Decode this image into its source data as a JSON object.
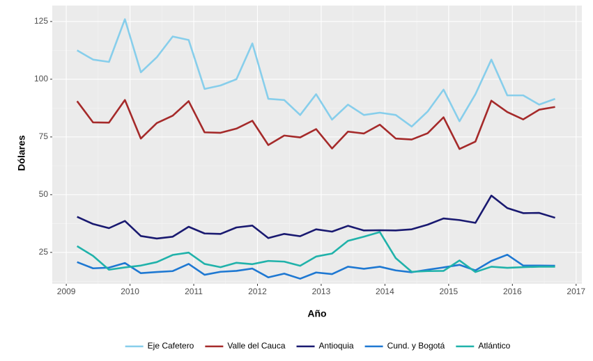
{
  "chart_data": {
    "type": "line",
    "x_label": "Año",
    "y_label": "Dólares",
    "x": [
      2009.17,
      2009.42,
      2009.67,
      2009.92,
      2010.17,
      2010.42,
      2010.67,
      2010.92,
      2011.17,
      2011.42,
      2011.67,
      2011.92,
      2012.17,
      2012.42,
      2012.67,
      2012.92,
      2013.17,
      2013.42,
      2013.67,
      2013.92,
      2014.17,
      2014.42,
      2014.67,
      2014.92,
      2015.17,
      2015.42,
      2015.67,
      2015.92,
      2016.17,
      2016.42,
      2016.67
    ],
    "series": [
      {
        "name": "Eje Cafetero",
        "color": "#87ceeb",
        "values": [
          112.5,
          108.5,
          107.5,
          126,
          103,
          109.5,
          118.5,
          117,
          95.8,
          97.3,
          100,
          115.5,
          91.5,
          91,
          84.5,
          93.5,
          82.5,
          89,
          84.5,
          85.5,
          84.5,
          79.5,
          86,
          95.5,
          81.8,
          93.5,
          108.5,
          93,
          93,
          89,
          91.5
        ]
      },
      {
        "name": "Valle del Cauca",
        "color": "#a52a2a",
        "values": [
          90.5,
          81.3,
          81.2,
          91,
          74.3,
          81,
          84.2,
          90.5,
          77,
          76.8,
          78.6,
          82,
          71.5,
          75.6,
          74.8,
          78.4,
          70,
          77.3,
          76.5,
          80.3,
          74.3,
          73.9,
          76.6,
          83.5,
          69.8,
          73,
          90.7,
          85.8,
          82.6,
          86.8,
          88
        ]
      },
      {
        "name": "Antioquia",
        "color": "#191970",
        "values": [
          40.4,
          37.3,
          35.5,
          38.6,
          32.1,
          31,
          31.8,
          36.1,
          33.2,
          33,
          35.8,
          36.6,
          31.2,
          33,
          32,
          35,
          34,
          36.5,
          34.5,
          34.6,
          34.5,
          35,
          37,
          39.7,
          39,
          37.8,
          49.6,
          44.2,
          42,
          42.1,
          40
        ]
      },
      {
        "name": "Cund. y Bogotá",
        "color": "#1e78d2",
        "values": [
          20.8,
          18.1,
          18.4,
          20.4,
          16,
          16.5,
          16.9,
          20,
          15.3,
          16.6,
          17,
          18,
          14.2,
          15.8,
          13.6,
          16.3,
          15.6,
          18.8,
          17.9,
          18.8,
          17.2,
          16.4,
          17.5,
          18.5,
          19.6,
          17.2,
          21.3,
          24,
          19.3,
          19.3,
          19.2
        ]
      },
      {
        "name": "Atlántico",
        "color": "#20b2aa",
        "values": [
          27.7,
          23.5,
          17.5,
          18.5,
          19.3,
          20.8,
          23.9,
          24.9,
          20,
          18.6,
          20.5,
          19.9,
          21.3,
          21,
          19.2,
          23.2,
          24.5,
          30,
          31.8,
          33.8,
          22.5,
          16.6,
          16.9,
          17,
          21.5,
          16.5,
          18.8,
          18.3,
          18.6,
          18.8,
          18.8
        ]
      }
    ],
    "xlim": [
      2008.78,
      2017.09
    ],
    "xticks": [
      2009,
      2010,
      2011,
      2012,
      2013,
      2014,
      2015,
      2016,
      2017
    ],
    "ylim": [
      11.4,
      131.9
    ],
    "yticks": [
      25,
      50,
      75,
      100,
      125
    ],
    "grid": true,
    "legend": "bottom"
  }
}
